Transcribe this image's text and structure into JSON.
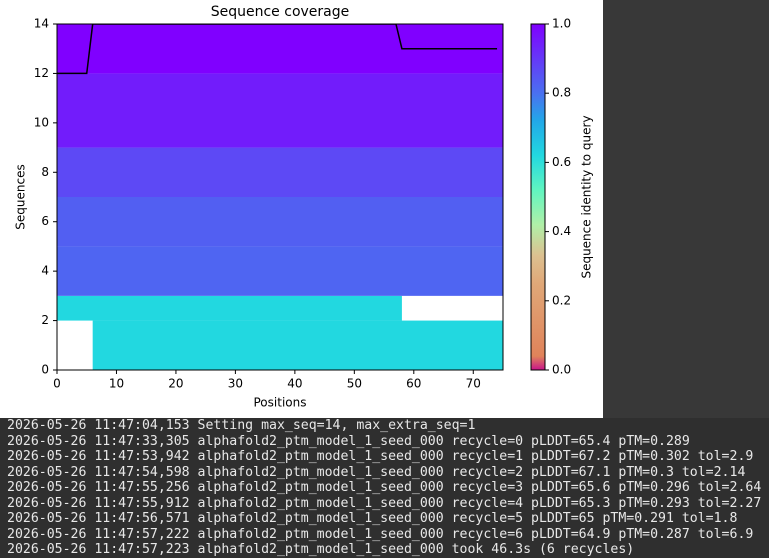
{
  "chart_data": {
    "type": "heatmap",
    "title": "Sequence coverage",
    "x_label": "Positions",
    "y_label": "Sequences",
    "xlim": [
      0,
      75
    ],
    "ylim": [
      0,
      14
    ],
    "xticks": [
      0,
      10,
      20,
      30,
      40,
      50,
      60,
      70
    ],
    "yticks": [
      0,
      2,
      4,
      6,
      8,
      10,
      12,
      14
    ],
    "cells": [
      {
        "x": [
          6,
          75
        ],
        "y": [
          0,
          2
        ],
        "value": 0.62
      },
      {
        "x": [
          0,
          58
        ],
        "y": [
          2,
          3
        ],
        "value": 0.62
      },
      {
        "x": [
          0,
          75
        ],
        "y": [
          3,
          5
        ],
        "value": 0.82
      },
      {
        "x": [
          0,
          75
        ],
        "y": [
          5,
          7
        ],
        "value": 0.83
      },
      {
        "x": [
          0,
          75
        ],
        "y": [
          7,
          9
        ],
        "value": 0.87
      },
      {
        "x": [
          0,
          75
        ],
        "y": [
          9,
          12
        ],
        "value": 0.95
      },
      {
        "x": [
          0,
          75
        ],
        "y": [
          12,
          14
        ],
        "value": 1.0
      }
    ],
    "coverage": {
      "color": "#000000",
      "x": [
        0,
        5,
        6,
        57,
        58,
        74
      ],
      "values": [
        12,
        12,
        14,
        14,
        13,
        13
      ]
    },
    "colorbar": {
      "label": "Sequence identity to query",
      "lim": [
        0,
        1
      ],
      "ticks": [
        {
          "value": 0,
          "label": "0.0"
        },
        {
          "value": 0.2,
          "label": "0.2"
        },
        {
          "value": 0.4,
          "label": "0.4"
        },
        {
          "value": 0.6,
          "label": "0.6"
        },
        {
          "value": 0.8,
          "label": "0.8"
        },
        {
          "value": 1,
          "label": "1.0"
        }
      ],
      "colormap": [
        {
          "value": 0,
          "color": "#c8148a"
        },
        {
          "value": 0.04,
          "color": "#e0835a"
        },
        {
          "value": 0.25,
          "color": "#e0a878"
        },
        {
          "value": 0.33,
          "color": "#dcc090"
        },
        {
          "value": 0.42,
          "color": "#b0f0a8"
        },
        {
          "value": 0.52,
          "color": "#60f5c0"
        },
        {
          "value": 0.62,
          "color": "#22d8e0"
        },
        {
          "value": 0.72,
          "color": "#22a8e8"
        },
        {
          "value": 0.8,
          "color": "#4a70f0"
        },
        {
          "value": 1,
          "color": "#8000ff"
        }
      ]
    }
  },
  "log": {
    "lines": [
      "2026-05-26 11:47:04,153 Setting max_seq=14, max_extra_seq=1",
      "2026-05-26 11:47:33,305 alphafold2_ptm_model_1_seed_000 recycle=0 pLDDT=65.4 pTM=0.289",
      "2026-05-26 11:47:53,942 alphafold2_ptm_model_1_seed_000 recycle=1 pLDDT=67.2 pTM=0.302 tol=2.9",
      "2026-05-26 11:47:54,598 alphafold2_ptm_model_1_seed_000 recycle=2 pLDDT=67.1 pTM=0.3 tol=2.14",
      "2026-05-26 11:47:55,256 alphafold2_ptm_model_1_seed_000 recycle=3 pLDDT=65.6 pTM=0.296 tol=2.64",
      "2026-05-26 11:47:55,912 alphafold2_ptm_model_1_seed_000 recycle=4 pLDDT=65.3 pTM=0.293 tol=2.27",
      "2026-05-26 11:47:56,571 alphafold2_ptm_model_1_seed_000 recycle=5 pLDDT=65 pTM=0.291 tol=1.8",
      "2026-05-26 11:47:57,222 alphafold2_ptm_model_1_seed_000 recycle=6 pLDDT=64.9 pTM=0.287 tol=6.9",
      "2026-05-26 11:47:57,223 alphafold2_ptm_model_1_seed_000 took 46.3s (6 recycles)"
    ]
  }
}
